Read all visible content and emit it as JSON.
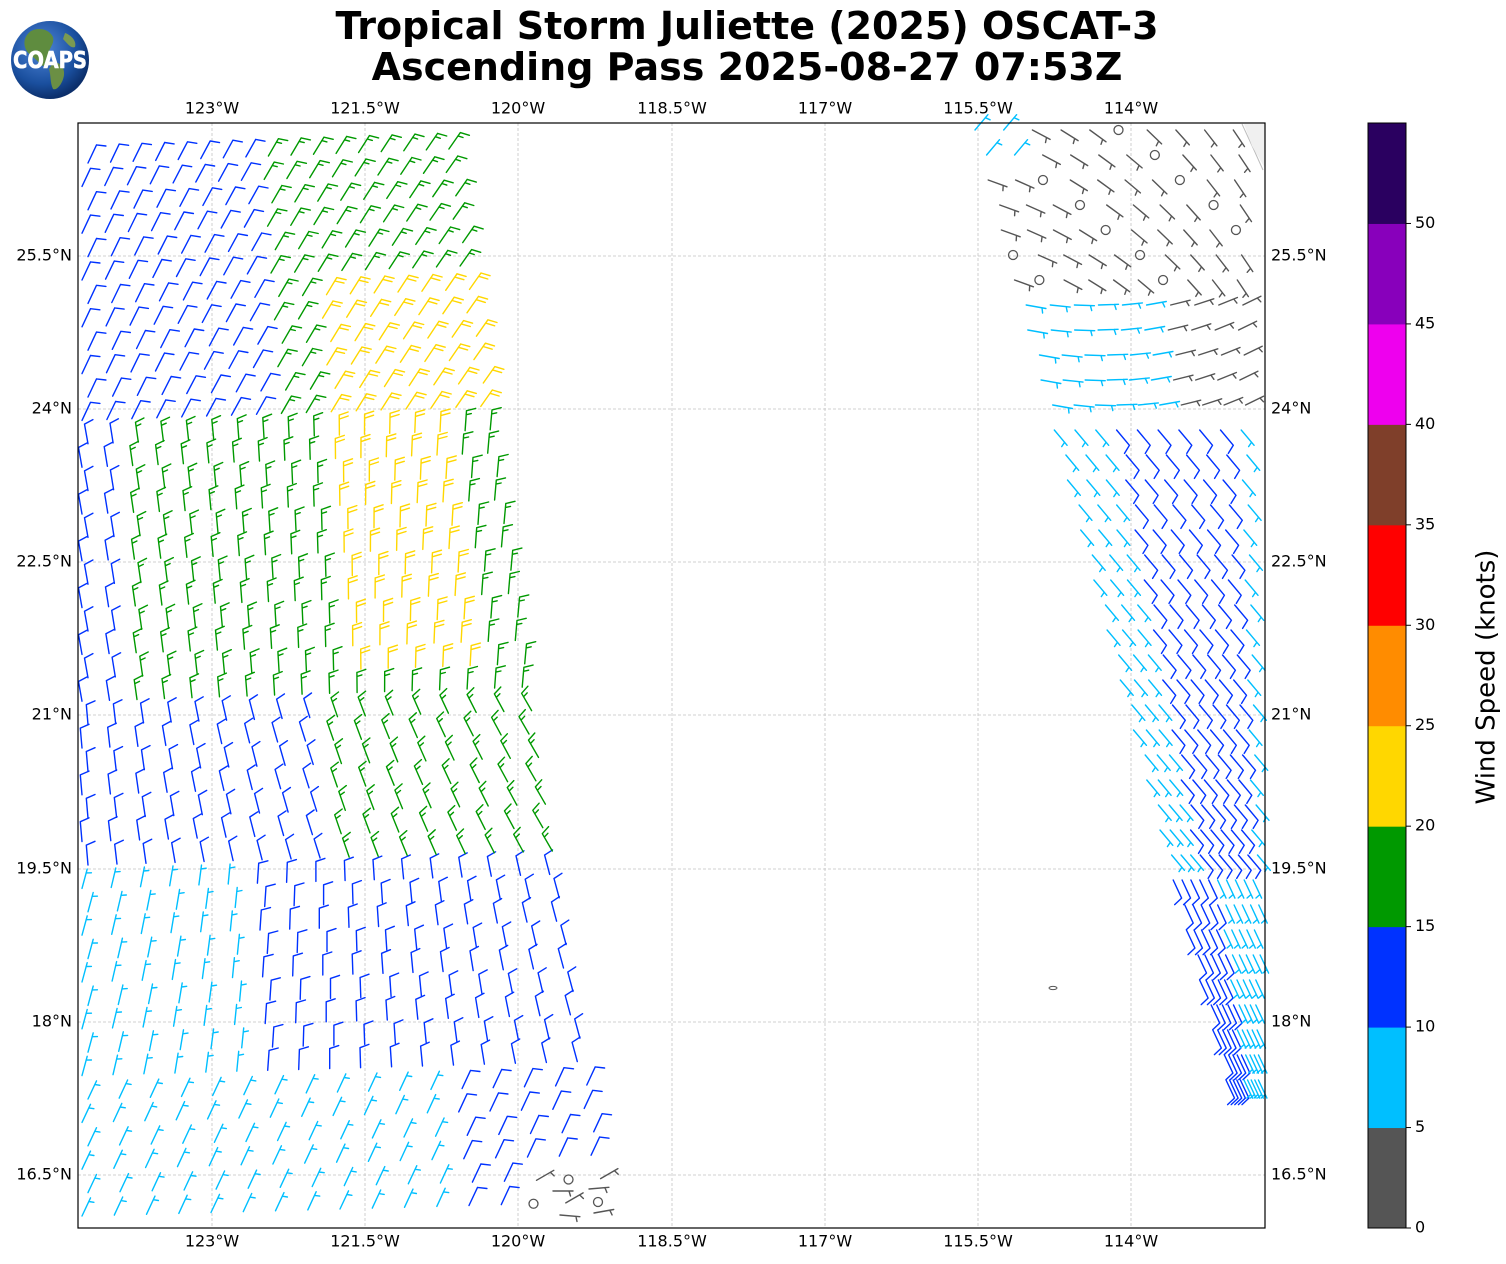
{
  "title": {
    "line1": "Tropical Storm Juliette (2025) OSCAT-3",
    "line2": "Ascending Pass 2025-08-27 07:53Z"
  },
  "logo": {
    "text": "COAPS",
    "icon": "globe-icon"
  },
  "map": {
    "lon_labels": [
      "123°W",
      "121.5°W",
      "120°W",
      "118.5°W",
      "117°W",
      "115.5°W",
      "114°W"
    ],
    "lat_labels": [
      "25.5°N",
      "24°N",
      "22.5°N",
      "21°N",
      "19.5°N",
      "18°N",
      "16.5°N"
    ],
    "lon_range": [
      -124.35,
      -112.75
    ],
    "lat_range": [
      15.98,
      26.8
    ],
    "grid": true
  },
  "colorbar": {
    "label": "Wind Speed (knots)",
    "ticks": [
      "0",
      "5",
      "10",
      "15",
      "20",
      "25",
      "30",
      "35",
      "40",
      "45",
      "50"
    ],
    "colors": [
      "#555555",
      "#00bfff",
      "#0032ff",
      "#009900",
      "#ffd700",
      "#ff8c00",
      "#ff0000",
      "#7f3f2a",
      "#ee00ee",
      "#8800bb",
      "#2a0060"
    ]
  }
}
